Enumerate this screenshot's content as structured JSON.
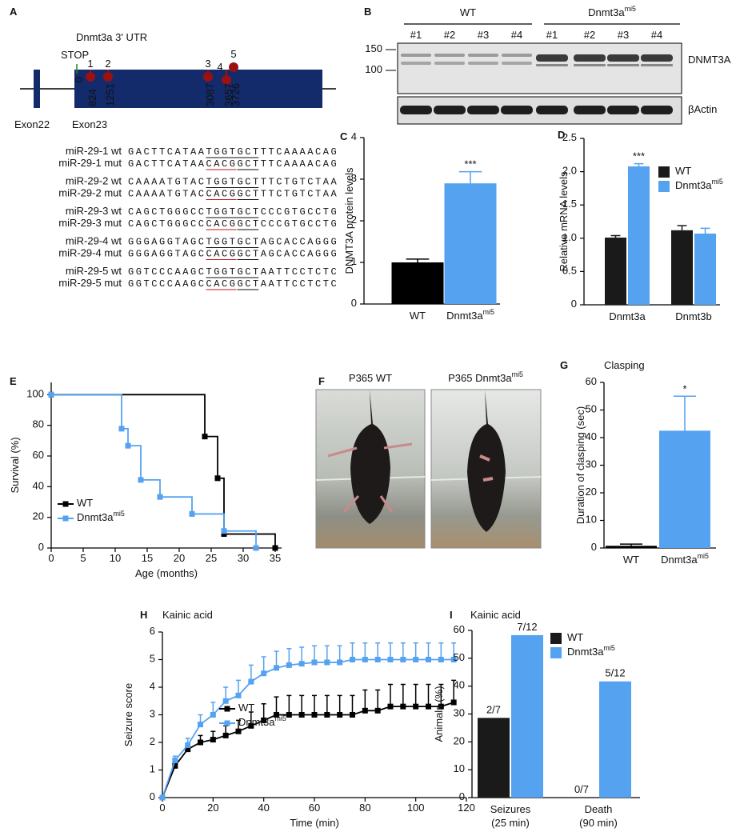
{
  "gene_diagram": {
    "panel": "A",
    "title": "Dnmt3a 3' UTR",
    "stop": "STOP",
    "start": 0,
    "exons": [
      "Exon22",
      "Exon23"
    ],
    "sites": [
      {
        "number": 1,
        "position": 824
      },
      {
        "number": 2,
        "position": 1251
      },
      {
        "number": 3,
        "position": 3087
      },
      {
        "number": 4,
        "position": 3657
      },
      {
        "number": 5,
        "position": 3726
      }
    ],
    "sequences": [
      {
        "wt_label": "miR-29-1 wt",
        "mut_label": "miR-29-1 mut",
        "prefix": "GACTTCATAA",
        "site": "TGGTGCT",
        "mut_site": "CACG",
        "mut_rest": "GCT",
        "suffix": "TTCAAAACAG"
      },
      {
        "wt_label": "miR-29-2 wt",
        "mut_label": "miR-29-2 mut",
        "prefix": "CAAAATGTAC",
        "site": "TGGTGCT",
        "mut_site": "CACG",
        "mut_rest": "GCT",
        "suffix": "TTCTGTCTAA"
      },
      {
        "wt_label": "miR-29-3 wt",
        "mut_label": "miR-29-3 mut",
        "prefix": "CAGCTGGGCC",
        "site": "TGGTGCT",
        "mut_site": "CACG",
        "mut_rest": "GCT",
        "suffix": "CCCGTGCCTG"
      },
      {
        "wt_label": "miR-29-4 wt",
        "mut_label": "miR-29-4 mut",
        "prefix": "GGGAGGTAGC",
        "site": "TGGTGCT",
        "mut_site": "CACG",
        "mut_rest": "GCT",
        "suffix": "AGCACCAGGG"
      },
      {
        "wt_label": "miR-29-5 wt",
        "mut_label": "miR-29-5 mut",
        "prefix": "GGTCCCAAGC",
        "site": "TGGTGCT",
        "mut_site": "CACG",
        "mut_rest": "GCT",
        "suffix": "AATTCCTCTC"
      }
    ]
  },
  "blot": {
    "panel": "B",
    "groups": [
      {
        "name": "WT"
      },
      {
        "name": "Dnmt3a",
        "sup": "mi5"
      }
    ],
    "lanes": [
      "#1",
      "#2",
      "#3",
      "#4",
      "#1",
      "#2",
      "#3",
      "#4"
    ],
    "markers": [
      150,
      100
    ],
    "bands": [
      "DNMT3A",
      "βActin"
    ]
  },
  "photos": {
    "panel": "F",
    "images": [
      {
        "label": "P365 WT"
      },
      {
        "label": "P365 Dnmt3a",
        "sup": "mi5"
      }
    ]
  },
  "chart_data": [
    {
      "panel": "C",
      "type": "bar",
      "ylabel": "DNMT3A protein levels",
      "categories": [
        "WT",
        "Dnmt3a"
      ],
      "category_sups": [
        null,
        "mi5"
      ],
      "values": [
        1.0,
        2.9
      ],
      "errors": [
        0.08,
        0.28
      ],
      "colors": [
        "#000000",
        "#55a2f0"
      ],
      "significance": [
        null,
        "***"
      ],
      "ylim": [
        0,
        4
      ],
      "yticks": [
        0,
        1,
        2,
        3,
        4
      ]
    },
    {
      "panel": "D",
      "type": "bar",
      "ylabel": "Relative mRNA levels",
      "categories": [
        "Dnmt3a",
        "Dnmt3b"
      ],
      "series": [
        {
          "name": "WT",
          "color": "#1a1a1a",
          "values": [
            1.01,
            1.12
          ],
          "errors": [
            0.03,
            0.07
          ]
        },
        {
          "name": "Dnmt3a",
          "name_sup": "mi5",
          "color": "#55a2f0",
          "values": [
            2.08,
            1.07
          ],
          "errors": [
            0.04,
            0.08
          ],
          "significance": [
            "***",
            null
          ]
        }
      ],
      "ylim": [
        0,
        2.5
      ],
      "yticks": [
        0,
        0.5,
        {
          "value": 1,
          "label": "1.0"
        },
        1.5,
        {
          "value": 2,
          "label": "2.0"
        },
        2.5
      ]
    },
    {
      "panel": "E",
      "type": "line",
      "step": true,
      "xlabel": "Age (months)",
      "ylabel": "Survival (%)",
      "series": [
        {
          "name": "WT",
          "color": "#000000",
          "x": [
            0,
            24,
            26,
            27,
            35
          ],
          "values": [
            100,
            72.7,
            45.5,
            9.1,
            0
          ]
        },
        {
          "name": "Dnmt3a",
          "name_sup": "mi5",
          "color": "#55a2f0",
          "x": [
            0,
            11,
            12,
            14,
            17,
            22,
            27,
            32
          ],
          "values": [
            100,
            77.8,
            66.7,
            44.4,
            33.3,
            22.2,
            11.1,
            0
          ]
        }
      ],
      "xlim": [
        0,
        36
      ],
      "xticks": [
        0,
        5,
        10,
        15,
        20,
        25,
        30,
        35
      ],
      "ylim": [
        0,
        108
      ],
      "yticks": [
        0,
        20,
        40,
        60,
        80,
        100
      ]
    },
    {
      "panel": "G",
      "type": "bar",
      "title": "Clasping",
      "ylabel": "Duration of clasping (sec)",
      "categories": [
        "WT",
        "Dnmt3a"
      ],
      "category_sups": [
        null,
        "mi5"
      ],
      "values": [
        0.8,
        42.5
      ],
      "errors": [
        0.6,
        12.5
      ],
      "colors": [
        "#000000",
        "#55a2f0"
      ],
      "significance": [
        null,
        "*"
      ],
      "ylim": [
        0,
        60
      ],
      "yticks": [
        0,
        10,
        20,
        30,
        40,
        50,
        60
      ]
    },
    {
      "panel": "H",
      "type": "line",
      "title": "Kainic acid",
      "xlabel": "Time (min)",
      "ylabel": "Seizure score",
      "x": [
        0,
        5,
        10,
        15,
        20,
        25,
        30,
        35,
        40,
        45,
        50,
        55,
        60,
        65,
        70,
        75,
        80,
        85,
        90,
        95,
        100,
        105,
        110,
        115
      ],
      "series": [
        {
          "name": "WT",
          "color": "#000000",
          "values": [
            0,
            1.15,
            1.75,
            2.0,
            2.1,
            2.25,
            2.4,
            2.6,
            2.8,
            3.0,
            3.0,
            3.0,
            3.0,
            3.0,
            3.0,
            3.0,
            3.15,
            3.15,
            3.3,
            3.3,
            3.3,
            3.3,
            3.3,
            3.45
          ],
          "errors": [
            0,
            0.15,
            0.2,
            0.25,
            0.3,
            0.35,
            0.4,
            0.5,
            0.6,
            0.65,
            0.7,
            0.7,
            0.7,
            0.7,
            0.7,
            0.7,
            0.75,
            0.75,
            0.8,
            0.8,
            0.8,
            0.8,
            0.8,
            0.8
          ]
        },
        {
          "name": "Dnmt3a",
          "name_sup": "mi5",
          "color": "#55a2f0",
          "values": [
            0,
            1.35,
            1.9,
            2.65,
            3.0,
            3.5,
            3.7,
            4.2,
            4.5,
            4.7,
            4.8,
            4.85,
            4.9,
            4.9,
            4.9,
            5,
            5,
            5,
            5,
            5,
            5,
            5,
            5,
            5
          ],
          "errors": [
            0,
            0.15,
            0.25,
            0.35,
            0.45,
            0.5,
            0.55,
            0.6,
            0.6,
            0.6,
            0.6,
            0.6,
            0.6,
            0.6,
            0.6,
            0.6,
            0.6,
            0.6,
            0.6,
            0.6,
            0.6,
            0.6,
            0.6,
            0.6
          ]
        }
      ],
      "xlim": [
        0,
        120
      ],
      "xticks": [
        0,
        20,
        40,
        60,
        80,
        100,
        120
      ],
      "ylim": [
        0,
        6
      ],
      "yticks": [
        0,
        1,
        2,
        3,
        4,
        5,
        6
      ]
    },
    {
      "panel": "I",
      "type": "bar",
      "title": "Kainic acid",
      "ylabel": "Animals (%)",
      "categories": [
        "Seizures",
        "Death"
      ],
      "category_notes": [
        "(25 min)",
        "(90 min)"
      ],
      "series": [
        {
          "name": "WT",
          "color": "#1a1a1a",
          "values": [
            28.6,
            0
          ],
          "value_labels": [
            "2/7",
            "0/7"
          ]
        },
        {
          "name": "Dnmt3a",
          "name_sup": "mi5",
          "color": "#55a2f0",
          "values": [
            58.3,
            41.7
          ],
          "value_labels": [
            "7/12",
            "5/12"
          ]
        }
      ],
      "ylim": [
        0,
        60
      ],
      "yticks": [
        0,
        10,
        20,
        30,
        40,
        50,
        60
      ]
    }
  ]
}
